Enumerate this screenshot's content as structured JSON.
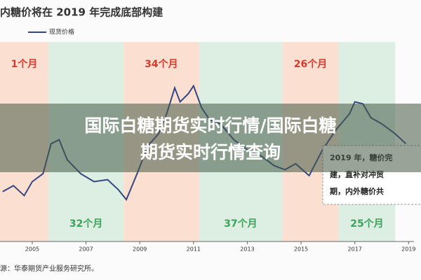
{
  "chart_data": {
    "type": "line",
    "title": "内糖价将在 2019 年完成底部构建",
    "source": "源：华泰期货产业服务研究所。",
    "note": [
      "2019 年，糖价完",
      "建，直补对冲贸",
      "期，内外糖价共"
    ],
    "xlim": [
      2003.8,
      2019.2
    ],
    "xticks": [
      2005,
      2007,
      2009,
      2011,
      2013,
      2015,
      2017,
      2019
    ],
    "ylim": [
      0,
      100
    ],
    "bands": [
      {
        "start": 2003.8,
        "end": 2005.6,
        "label": "1个月",
        "color": "#fbe0d2",
        "text_color": "#d9382b",
        "position": "top"
      },
      {
        "start": 2005.6,
        "end": 2008.4,
        "label": "32个月",
        "color": "#dcefe2",
        "text_color": "#3aa35a",
        "position": "bottom"
      },
      {
        "start": 2008.4,
        "end": 2011.2,
        "label": "34个月",
        "color": "#fbe0d2",
        "text_color": "#d9382b",
        "position": "top"
      },
      {
        "start": 2011.2,
        "end": 2014.3,
        "label": "37个月",
        "color": "#dcefe2",
        "text_color": "#3aa35a",
        "position": "bottom"
      },
      {
        "start": 2014.3,
        "end": 2016.4,
        "label": "26个月",
        "color": "#fbe0d2",
        "text_color": "#d9382b",
        "position": "top"
      },
      {
        "start": 2016.4,
        "end": 2018.5,
        "label": "25个月",
        "color": "#dcefe2",
        "text_color": "#3aa35a",
        "position": "bottom"
      }
    ],
    "series": [
      {
        "name": "现货价格",
        "color": "#34467f",
        "x": [
          2003.9,
          2004.3,
          2004.7,
          2005.0,
          2005.4,
          2005.7,
          2006.0,
          2006.3,
          2006.8,
          2007.3,
          2007.8,
          2008.2,
          2008.5,
          2008.9,
          2009.3,
          2009.7,
          2010.0,
          2010.3,
          2010.5,
          2010.8,
          2011.0,
          2011.3,
          2011.6,
          2012.0,
          2012.5,
          2013.0,
          2013.5,
          2014.0,
          2014.4,
          2014.8,
          2015.3,
          2015.8,
          2016.3,
          2016.8,
          2017.0,
          2017.3,
          2017.6,
          2018.0,
          2018.5,
          2018.9
        ],
        "values": [
          25,
          28,
          23,
          30,
          34,
          49,
          51,
          41,
          34,
          30,
          31,
          26,
          21,
          34,
          48,
          54,
          64,
          77,
          70,
          74,
          78,
          67,
          61,
          59,
          51,
          46,
          43,
          38,
          36,
          39,
          33,
          46,
          56,
          64,
          70,
          69,
          62,
          59,
          54,
          49
        ]
      }
    ]
  },
  "banner": [
    "国际白糖期货实时行情/国际白糖",
    "期货实时行情查询"
  ]
}
